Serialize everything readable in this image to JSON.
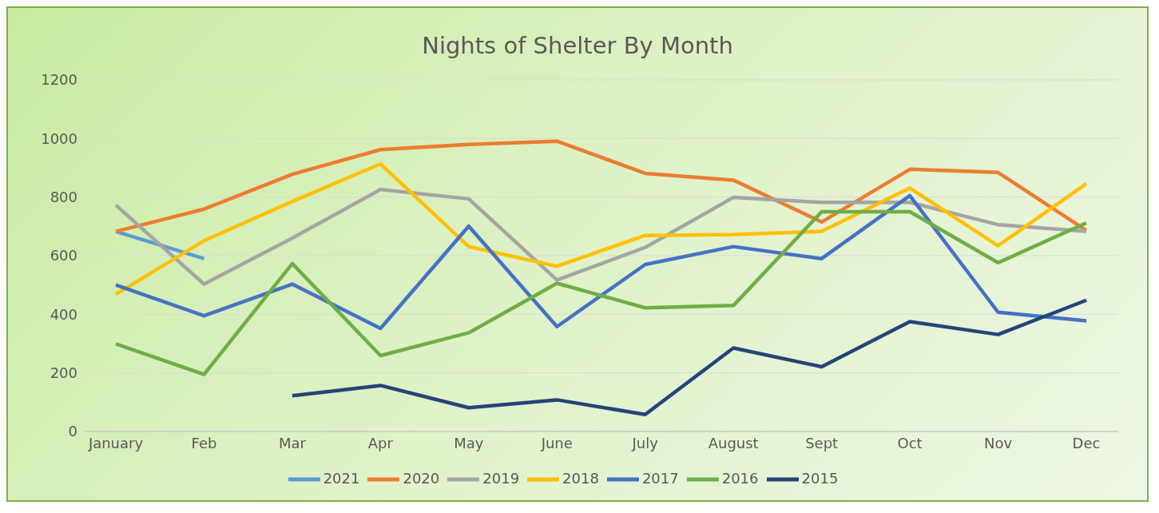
{
  "chart_data": {
    "type": "line",
    "title": "Nights of Shelter By Month",
    "categories": [
      "January",
      "Feb",
      "Mar",
      "Apr",
      "May",
      "June",
      "July",
      "August",
      "Sept",
      "Oct",
      "Nov",
      "Dec"
    ],
    "series": [
      {
        "name": "2021",
        "color": "#5b9bd5",
        "values": [
          683,
          590,
          null,
          null,
          null,
          null,
          null,
          null,
          null,
          null,
          null,
          null
        ]
      },
      {
        "name": "2020",
        "color": "#ed7d31",
        "values": [
          683,
          759,
          878,
          962,
          980,
          991,
          881,
          858,
          715,
          895,
          884,
          686
        ]
      },
      {
        "name": "2019",
        "color": "#a5a5a5",
        "values": [
          773,
          503,
          660,
          826,
          794,
          517,
          628,
          799,
          782,
          782,
          706,
          683
        ]
      },
      {
        "name": "2018",
        "color": "#ffc000",
        "values": [
          468,
          651,
          785,
          913,
          631,
          564,
          669,
          672,
          683,
          831,
          634,
          846
        ]
      },
      {
        "name": "2017",
        "color": "#4472c4",
        "values": [
          500,
          395,
          503,
          352,
          701,
          358,
          570,
          631,
          590,
          805,
          407,
          378
        ]
      },
      {
        "name": "2016",
        "color": "#70ad47",
        "values": [
          299,
          195,
          573,
          259,
          337,
          506,
          422,
          430,
          750,
          750,
          576,
          712
        ]
      },
      {
        "name": "2015",
        "color": "#264478",
        "values": [
          null,
          null,
          122,
          157,
          81,
          108,
          58,
          285,
          221,
          375,
          331,
          448
        ]
      }
    ],
    "ylim": [
      0,
      1200
    ],
    "yticks": [
      0,
      200,
      400,
      600,
      800,
      1000,
      1200
    ],
    "grid": "y",
    "legend": "bottom",
    "marker": "none",
    "line_style": "solid"
  }
}
